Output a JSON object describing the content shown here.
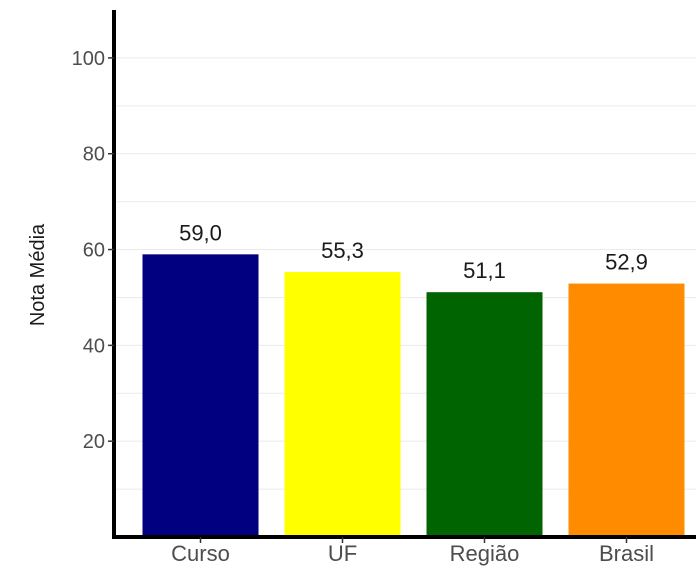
{
  "chart_data": {
    "type": "bar",
    "categories": [
      "Curso",
      "UF",
      "Região",
      "Brasil"
    ],
    "values": [
      59.0,
      55.3,
      51.1,
      52.9
    ],
    "value_labels": [
      "59,0",
      "55,3",
      "51,1",
      "52,9"
    ],
    "colors": [
      "#000080",
      "#ffff00",
      "#006400",
      "#ff8c00"
    ],
    "ylabel": "Nota Média",
    "ylim": [
      0,
      110
    ],
    "yticks": [
      20,
      40,
      60,
      80,
      100
    ],
    "grid": true,
    "legend": "none"
  }
}
